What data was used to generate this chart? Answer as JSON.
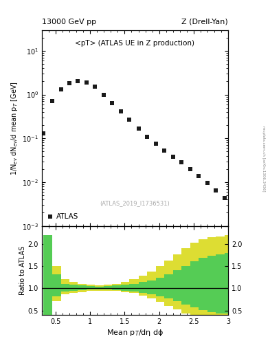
{
  "title_left": "13000 GeV pp",
  "title_right": "Z (Drell-Yan)",
  "annotation": "<pT> (ATLAS UE in Z production)",
  "dataset_label": "(ATLAS_2019_I1736531)",
  "legend_label": "ATLAS",
  "ylabel_main": "1/N$_{ev}$ dN$_{ev}$/d mean p$_T$ [GeV]",
  "xlabel": "Mean p$_{T}$/dη dϕ",
  "ylabel_ratio": "Ratio to ATLAS",
  "main_x": [
    0.32,
    0.45,
    0.58,
    0.7,
    0.82,
    0.95,
    1.07,
    1.2,
    1.32,
    1.45,
    1.57,
    1.7,
    1.82,
    1.95,
    2.07,
    2.2,
    2.32,
    2.45,
    2.57,
    2.7,
    2.82,
    2.95
  ],
  "main_y": [
    0.13,
    0.7,
    1.3,
    1.8,
    2.0,
    1.9,
    1.5,
    1.0,
    0.65,
    0.42,
    0.27,
    0.17,
    0.11,
    0.076,
    0.052,
    0.038,
    0.028,
    0.02,
    0.014,
    0.0098,
    0.0065,
    0.0043
  ],
  "xlim": [
    0.3,
    3.0
  ],
  "ylim_main": [
    0.001,
    30
  ],
  "ylim_ratio": [
    0.4,
    2.4
  ],
  "ratio_yticks": [
    0.5,
    1.0,
    1.5,
    2.0
  ],
  "yellow_band_edges": [
    0.32,
    0.45,
    0.58,
    0.7,
    0.82,
    0.95,
    1.07,
    1.2,
    1.32,
    1.45,
    1.57,
    1.7,
    1.82,
    1.95,
    2.07,
    2.2,
    2.32,
    2.45,
    2.57,
    2.7,
    2.82,
    2.95,
    3.07
  ],
  "yellow_band_lo": [
    0.4,
    0.72,
    0.87,
    0.9,
    0.92,
    0.94,
    0.95,
    0.95,
    0.94,
    0.92,
    0.89,
    0.84,
    0.78,
    0.7,
    0.61,
    0.52,
    0.44,
    0.37,
    0.31,
    0.27,
    0.25,
    0.25
  ],
  "yellow_band_hi": [
    2.2,
    1.5,
    1.2,
    1.14,
    1.1,
    1.08,
    1.07,
    1.08,
    1.1,
    1.14,
    1.2,
    1.28,
    1.38,
    1.5,
    1.62,
    1.76,
    1.9,
    2.02,
    2.1,
    2.14,
    2.16,
    2.2
  ],
  "green_band_edges": [
    0.32,
    0.45,
    0.58,
    0.7,
    0.82,
    0.95,
    1.07,
    1.2,
    1.32,
    1.45,
    1.57,
    1.7,
    1.82,
    1.95,
    2.07,
    2.2,
    2.32,
    2.45,
    2.57,
    2.7,
    2.82,
    2.95,
    3.07
  ],
  "green_band_lo": [
    0.4,
    0.82,
    0.93,
    0.95,
    0.96,
    0.97,
    0.98,
    0.97,
    0.96,
    0.95,
    0.93,
    0.9,
    0.87,
    0.82,
    0.77,
    0.71,
    0.64,
    0.57,
    0.51,
    0.46,
    0.44,
    0.44
  ],
  "green_band_hi": [
    2.2,
    1.32,
    1.1,
    1.08,
    1.06,
    1.05,
    1.04,
    1.05,
    1.06,
    1.08,
    1.1,
    1.14,
    1.18,
    1.24,
    1.32,
    1.4,
    1.5,
    1.6,
    1.68,
    1.73,
    1.76,
    1.8
  ],
  "marker_color": "#1a1a1a",
  "green_color": "#55cc55",
  "yellow_color": "#dddd33",
  "background_color": "#ffffff",
  "watermark_text": "mcplots.cern.ch [arXiv:1306.3436]",
  "main_xticks": [
    0.5,
    1.0,
    1.5,
    2.0,
    2.5,
    3.0
  ],
  "main_xtick_labels": [
    "0.5",
    "1",
    "1.5",
    "2",
    "2.5",
    "3"
  ]
}
